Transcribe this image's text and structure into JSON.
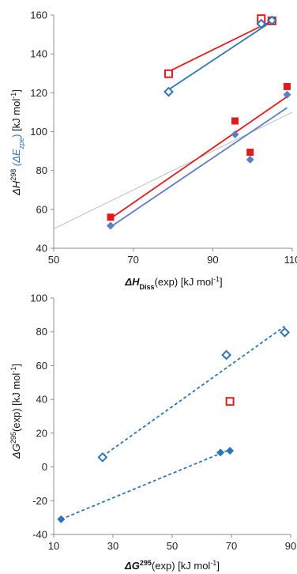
{
  "colors": {
    "blue": "#2E75B6",
    "blue_fill": "#5B7FC0",
    "red": "#E31A1C",
    "grey": "#BFBFBF",
    "axis": "#8C8C8C"
  },
  "chart_data": [
    {
      "type": "scatter",
      "xlabel_main": "ΔH",
      "xlabel_sub": "Diss",
      "xlabel_rest": "(exp) [kJ mol",
      "xlabel_sup": "-1",
      "xlabel_end": "]",
      "ylabel_a": "ΔH",
      "ylabel_a_sup": "298",
      "ylabel_b": " (ΔE",
      "ylabel_b_sub": "zpe",
      "ylabel_c": ")",
      "ylabel_d": " [kJ mol",
      "ylabel_d_sup": "-1",
      "ylabel_e": "]",
      "xlim": [
        50,
        110
      ],
      "ylim": [
        40,
        160
      ],
      "xticks": [
        50,
        70,
        90,
        110
      ],
      "yticks": [
        40,
        60,
        80,
        100,
        120,
        140,
        160
      ],
      "grid": false,
      "series": [
        {
          "marker": "square-open",
          "color": "red",
          "x": [
            78.9,
            102.2,
            104.9
          ],
          "y": [
            129.8,
            158.1,
            157.0
          ],
          "fit": [
            [
              78.9,
              130.9
            ],
            [
              104.9,
              157.0
            ]
          ]
        },
        {
          "marker": "diamond-open",
          "color": "blue",
          "x": [
            78.9,
            102.2,
            104.9
          ],
          "y": [
            120.5,
            155.5,
            157.2
          ],
          "fit": [
            [
              78.9,
              121.6
            ],
            [
              104.9,
              156.8
            ]
          ]
        },
        {
          "marker": "square-filled",
          "color": "red",
          "x": [
            64.3,
            95.6,
            99.4,
            108.7
          ],
          "y": [
            56.0,
            105.5,
            89.4,
            123.2
          ],
          "fit": [
            [
              64.3,
              55.3
            ],
            [
              108.7,
              118.0
            ]
          ]
        },
        {
          "marker": "diamond-filled",
          "color": "blue_fill",
          "x": [
            64.3,
            95.6,
            99.4,
            108.7
          ],
          "y": [
            51.6,
            98.6,
            85.6,
            119.0
          ],
          "fit": [
            [
              64.3,
              51.0
            ],
            [
              108.7,
              112.3
            ]
          ]
        }
      ],
      "reference_line": [
        [
          50,
          50
        ],
        [
          110,
          110
        ]
      ]
    },
    {
      "type": "scatter",
      "xlabel_main": "ΔG",
      "xlabel_sup1": "295",
      "xlabel_rest": "(exp) [kJ mol",
      "xlabel_sup": "-1",
      "xlabel_end": "]",
      "ylabel_a": "ΔG",
      "ylabel_a_sup": "295",
      "ylabel_d": "(exp) [kJ mol",
      "ylabel_d_sup": "-1",
      "ylabel_e": "]",
      "xlim": [
        10,
        90
      ],
      "ylim": [
        -40,
        100
      ],
      "xticks": [
        10,
        30,
        50,
        70,
        90
      ],
      "yticks": [
        -40,
        -20,
        0,
        20,
        40,
        60,
        80,
        100
      ],
      "grid": false,
      "series": [
        {
          "marker": "diamond-open",
          "color": "blue",
          "x": [
            26.5,
            68.3,
            88.0
          ],
          "y": [
            5.7,
            66.3,
            79.7
          ],
          "fit": [
            [
              26.5,
              6.3
            ],
            [
              88.0,
              83.3
            ]
          ],
          "dashed": true
        },
        {
          "marker": "square-open",
          "color": "red",
          "x": [
            69.5
          ],
          "y": [
            38.8
          ]
        },
        {
          "marker": "diamond-filled",
          "color": "blue",
          "x": [
            12.5,
            66.3,
            69.5
          ],
          "y": [
            -31.0,
            8.5,
            9.6
          ],
          "fit": [
            [
              12.5,
              -31.0
            ],
            [
              69.5,
              10.3
            ]
          ],
          "dashed": true
        }
      ]
    }
  ]
}
